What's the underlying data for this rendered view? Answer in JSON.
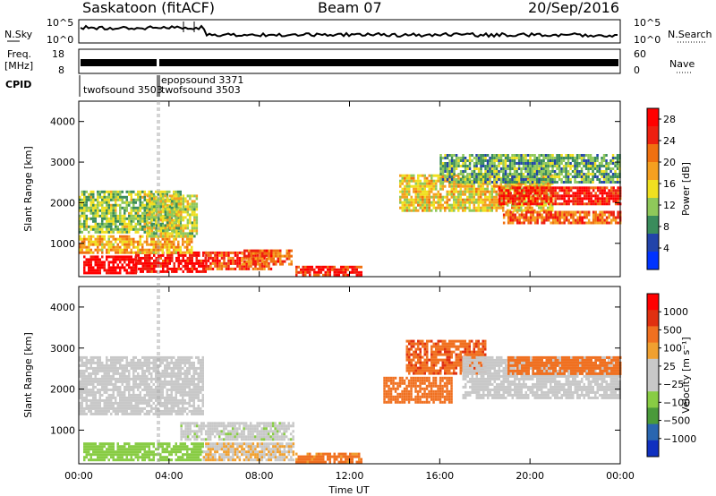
{
  "header": {
    "station": "Saskatoon (fitACF)",
    "beam": "Beam 07",
    "date": "20/Sep/2016"
  },
  "side_labels": {
    "nsky": "N.Sky",
    "nsearch": "N.Search",
    "freq": "Freq.",
    "freq_unit": "[MHz]",
    "nave": "Nave",
    "cpid": "CPID"
  },
  "noise_axis": {
    "left_ticks": [
      "10^5",
      "10^0"
    ],
    "right_ticks": [
      "10^5",
      "10^0"
    ]
  },
  "freq_axis": {
    "left_ticks": [
      "18",
      "8"
    ],
    "right_ticks": [
      "60",
      "0"
    ]
  },
  "cpid_labels": [
    {
      "text": "twofsound 3503",
      "time": 0.1
    },
    {
      "text": "epopsound 3371",
      "time": 3.3
    },
    {
      "text": "twofsound 3503",
      "time": 3.3
    }
  ],
  "colors": {
    "power_scale": [
      "#0033ff",
      "#2244aa",
      "#3a8c5c",
      "#8fc85a",
      "#f0e020",
      "#f5a020",
      "#f07010",
      "#ee2010",
      "#ff0000"
    ],
    "velocity_scale": [
      "#1030c0",
      "#2a66b0",
      "#4a9a3a",
      "#88cc44",
      "#c8c8c8",
      "#c8c8c8",
      "#f0a030",
      "#f07020",
      "#e03010",
      "#ff0000"
    ]
  },
  "chart_data": [
    {
      "type": "heatmap",
      "title": "Power",
      "ylabel": "Slant Range [km]",
      "xlabel": "",
      "x_range": [
        "00:00",
        "24:00"
      ],
      "ylim": [
        180,
        4500
      ],
      "y_ticks": [
        1000,
        2000,
        3000,
        4000
      ],
      "colorbar": {
        "label": "Power [dB]",
        "ticks": [
          4,
          8,
          12,
          16,
          20,
          24,
          28
        ],
        "range": [
          0,
          30
        ]
      },
      "echo_regions": [
        {
          "t0": 0.2,
          "t1": 2.5,
          "r0": 250,
          "r1": 700,
          "value": 30
        },
        {
          "t0": 2.5,
          "t1": 5.6,
          "r0": 300,
          "r1": 800,
          "value": 28
        },
        {
          "t0": 5.6,
          "t1": 8.5,
          "r0": 400,
          "r1": 800,
          "value": 24
        },
        {
          "t0": 7.2,
          "t1": 9.4,
          "r0": 500,
          "r1": 850,
          "value": 22
        },
        {
          "t0": 9.6,
          "t1": 12.5,
          "r0": 250,
          "r1": 450,
          "value": 26
        },
        {
          "t0": 0.0,
          "t1": 5.0,
          "r0": 800,
          "r1": 1200,
          "value": 18
        },
        {
          "t0": 0.0,
          "t1": 4.5,
          "r0": 1300,
          "r1": 2300,
          "value": 12
        },
        {
          "t0": 3.0,
          "t1": 5.2,
          "r0": 1200,
          "r1": 2200,
          "value": 14
        },
        {
          "t0": 14.2,
          "t1": 21.0,
          "r0": 1800,
          "r1": 2700,
          "value": 16
        },
        {
          "t0": 18.6,
          "t1": 24.0,
          "r0": 2000,
          "r1": 2400,
          "value": 26
        },
        {
          "t0": 18.8,
          "t1": 24.0,
          "r0": 1500,
          "r1": 1800,
          "value": 22
        },
        {
          "t0": 16.0,
          "t1": 24.0,
          "r0": 2500,
          "r1": 3200,
          "value": 10
        }
      ]
    },
    {
      "type": "heatmap",
      "title": "Velocity",
      "ylabel": "Slant Range [km]",
      "xlabel": "Time UT",
      "x_ticks": [
        "00:00",
        "04:00",
        "08:00",
        "12:00",
        "16:00",
        "20:00",
        "00:00"
      ],
      "ylim": [
        180,
        4500
      ],
      "y_ticks": [
        1000,
        2000,
        3000,
        4000
      ],
      "colorbar": {
        "label": "Velocity [m s⁻¹]",
        "ticks": [
          "1000",
          "500",
          "100",
          "25",
          "−25",
          "−100",
          "−500",
          "−1000"
        ]
      },
      "echo_regions": [
        {
          "t0": 0.2,
          "t1": 5.5,
          "r0": 250,
          "r1": 700,
          "value": 50
        },
        {
          "t0": 5.5,
          "t1": 9.5,
          "r0": 250,
          "r1": 700,
          "value": -20
        },
        {
          "t0": 9.6,
          "t1": 12.5,
          "r0": 250,
          "r1": 450,
          "value": -150
        },
        {
          "t0": 0.0,
          "t1": 5.5,
          "r0": 1400,
          "r1": 2800,
          "value": 0
        },
        {
          "t0": 4.5,
          "t1": 9.5,
          "r0": 800,
          "r1": 1200,
          "value": 10
        },
        {
          "t0": 14.5,
          "t1": 18.0,
          "r0": 2400,
          "r1": 3200,
          "value": -400
        },
        {
          "t0": 13.5,
          "t1": 16.5,
          "r0": 1700,
          "r1": 2300,
          "value": -200
        },
        {
          "t0": 17.0,
          "t1": 24.0,
          "r0": 1800,
          "r1": 2800,
          "value": 0
        },
        {
          "t0": 19.0,
          "t1": 24.0,
          "r0": 2400,
          "r1": 2800,
          "value": -300
        }
      ]
    }
  ]
}
